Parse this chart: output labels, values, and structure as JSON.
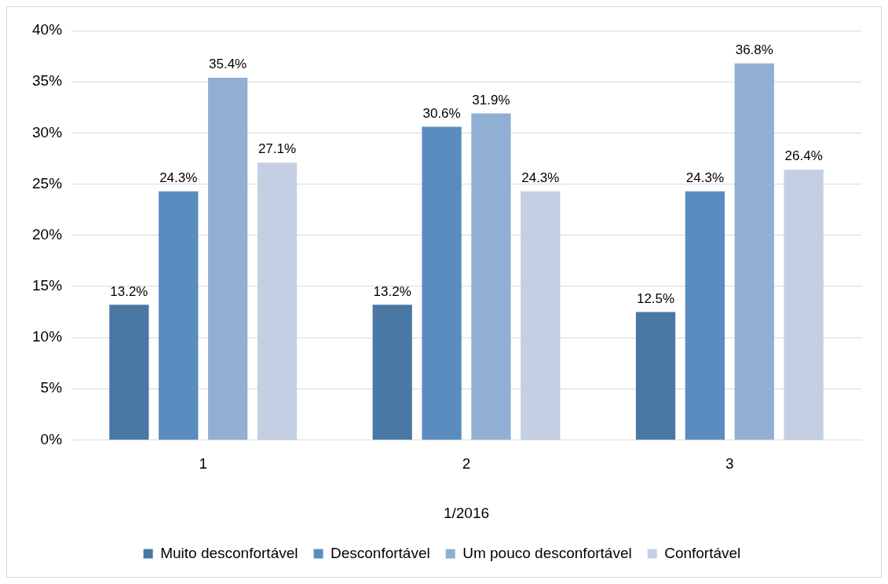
{
  "chart_data": {
    "type": "bar",
    "categories": [
      "1",
      "2",
      "3"
    ],
    "xlabel": "1/2016",
    "series": [
      {
        "name": "Muito desconfortável",
        "color": "#4a78a5",
        "values": [
          13.2,
          13.2,
          12.5
        ],
        "value_labels": [
          "13.2%",
          "13.2%",
          "12.5%"
        ]
      },
      {
        "name": "Desconfortável",
        "color": "#5b8cc0",
        "values": [
          24.3,
          30.6,
          24.3
        ],
        "value_labels": [
          "24.3%",
          "30.6%",
          "24.3%"
        ]
      },
      {
        "name": "Um pouco desconfortável",
        "color": "#91afd3",
        "values": [
          35.4,
          31.9,
          36.8
        ],
        "value_labels": [
          "35.4%",
          "31.9%",
          "36.8%"
        ]
      },
      {
        "name": "Confortável",
        "color": "#c5cfe3",
        "values": [
          27.1,
          24.3,
          26.4
        ],
        "value_labels": [
          "27.1%",
          "24.3%",
          "26.4%"
        ]
      }
    ],
    "ylim": [
      0,
      40
    ],
    "yticks": [
      {
        "value": 0,
        "label": "0%"
      },
      {
        "value": 5,
        "label": "5%"
      },
      {
        "value": 10,
        "label": "10%"
      },
      {
        "value": 15,
        "label": "15%"
      },
      {
        "value": 20,
        "label": "20%"
      },
      {
        "value": 25,
        "label": "25%"
      },
      {
        "value": 30,
        "label": "30%"
      },
      {
        "value": 35,
        "label": "35%"
      },
      {
        "value": 40,
        "label": "40%"
      }
    ],
    "grid": "y",
    "legend": "bottom"
  }
}
